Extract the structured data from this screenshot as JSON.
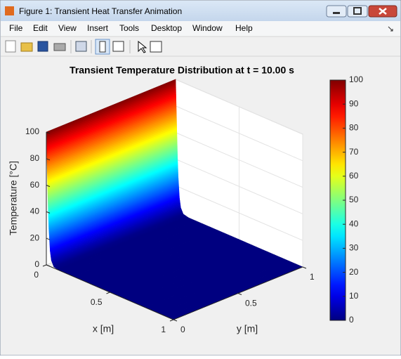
{
  "window": {
    "title": "Figure 1: Transient Heat Transfer Animation",
    "menu": [
      "File",
      "Edit",
      "View",
      "Insert",
      "Tools",
      "Desktop",
      "Window",
      "Help"
    ]
  },
  "chart_data": {
    "type": "surface3d",
    "title": "Transient Temperature Distribution at t = 10.00 s",
    "xlabel": "x [m]",
    "ylabel": "y [m]",
    "zlabel": "Temperature [°C]",
    "x": [
      0,
      0.005,
      0.01,
      0.015,
      0.02,
      0.03,
      0.04,
      0.06,
      0.1,
      1
    ],
    "values": [
      100,
      80,
      60,
      42,
      28,
      12,
      5,
      1,
      0,
      0
    ],
    "xlim": [
      0,
      1
    ],
    "xticks": [
      0,
      0.5,
      1
    ],
    "ylim": [
      0,
      1
    ],
    "yticks": [
      0,
      0.5,
      1
    ],
    "zlim": [
      0,
      100
    ],
    "zticks": [
      0,
      20,
      40,
      60,
      80,
      100
    ],
    "grid": true,
    "colormap": "jet",
    "colorbar": {
      "lim": [
        0,
        100
      ],
      "ticks": [
        0,
        10,
        20,
        30,
        40,
        50,
        60,
        70,
        80,
        90,
        100
      ]
    }
  }
}
